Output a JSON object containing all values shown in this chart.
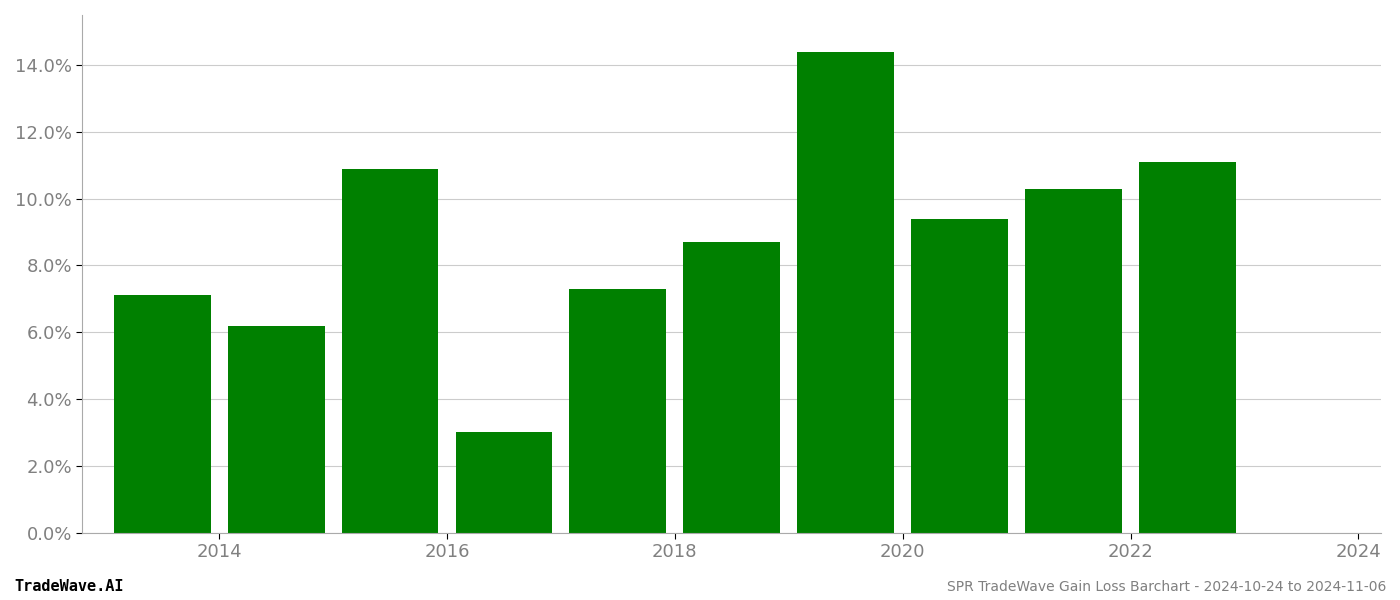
{
  "years": [
    2014,
    2015,
    2016,
    2017,
    2018,
    2019,
    2020,
    2021,
    2022,
    2023
  ],
  "values": [
    0.071,
    0.062,
    0.109,
    0.03,
    0.073,
    0.087,
    0.144,
    0.094,
    0.103,
    0.111
  ],
  "bar_color": "#008000",
  "background_color": "#ffffff",
  "ylim": [
    0,
    0.155
  ],
  "yticks": [
    0.0,
    0.02,
    0.04,
    0.06,
    0.08,
    0.1,
    0.12,
    0.14
  ],
  "footer_left": "TradeWave.AI",
  "footer_right": "SPR TradeWave Gain Loss Barchart - 2024-10-24 to 2024-11-06",
  "grid_color": "#cccccc",
  "tick_label_color": "#808080",
  "footer_color": "#808080",
  "bar_width": 0.85,
  "tick_years": [
    2014,
    2016,
    2018,
    2020,
    2022,
    2024
  ],
  "tick_positions": [
    0.5,
    2.5,
    4.5,
    6.5,
    8.5,
    10.5
  ]
}
